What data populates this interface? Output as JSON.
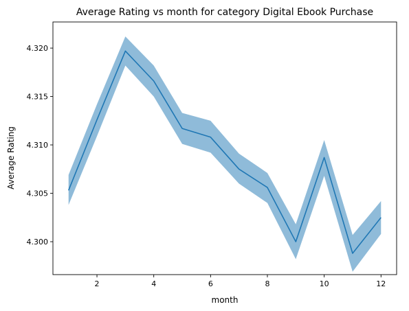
{
  "chart_data": {
    "type": "line",
    "title": "Average Rating vs month for category Digital Ebook Purchase",
    "xlabel": "month",
    "ylabel": "Average Rating",
    "x": [
      1,
      2,
      3,
      4,
      5,
      6,
      7,
      8,
      9,
      10,
      11,
      12
    ],
    "series": [
      {
        "values": [
          4.3053,
          4.3126,
          4.3197,
          4.3166,
          4.3117,
          4.3108,
          4.3075,
          4.3056,
          4.3,
          4.3087,
          4.2988,
          4.3025
        ],
        "lower": [
          4.3038,
          4.3109,
          4.3182,
          4.315,
          4.3101,
          4.3092,
          4.306,
          4.304,
          4.2982,
          4.3068,
          4.2969,
          4.3008
        ],
        "upper": [
          4.3069,
          4.3142,
          4.3212,
          4.3182,
          4.3133,
          4.3125,
          4.3091,
          4.3071,
          4.3018,
          4.3105,
          4.3007,
          4.3042
        ],
        "color": "#1f77b4",
        "band_color": "#1f77b4"
      }
    ],
    "xlim": [
      0.45,
      12.55
    ],
    "ylim": [
      4.2966,
      4.3227
    ],
    "xticks": [
      2,
      4,
      6,
      8,
      10,
      12
    ],
    "xtick_labels": [
      "2",
      "4",
      "6",
      "8",
      "10",
      "12"
    ],
    "yticks": [
      4.3,
      4.305,
      4.31,
      4.315,
      4.32
    ],
    "ytick_labels": [
      "4.300",
      "4.305",
      "4.310",
      "4.315",
      "4.320"
    ],
    "grid": false,
    "legend": "none"
  }
}
